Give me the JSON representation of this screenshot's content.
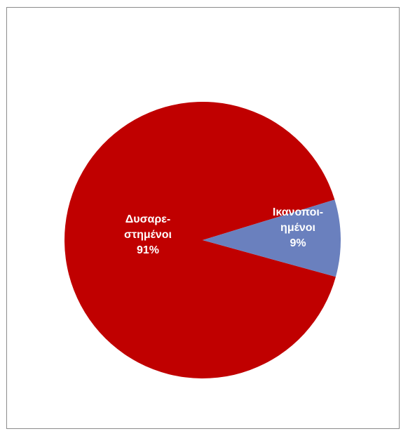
{
  "chart_data": {
    "type": "pie",
    "title": "",
    "slices": [
      {
        "label_lines": [
          "Δυσαρε-",
          "στημένοι"
        ],
        "value": 91,
        "percent_label": "91%",
        "color": "#c00000"
      },
      {
        "label_lines": [
          "Ικανοποι-",
          "ημένοι"
        ],
        "value": 9,
        "percent_label": "9%",
        "color": "#6a80be"
      }
    ],
    "legend": "none",
    "data_labels": "inside"
  }
}
